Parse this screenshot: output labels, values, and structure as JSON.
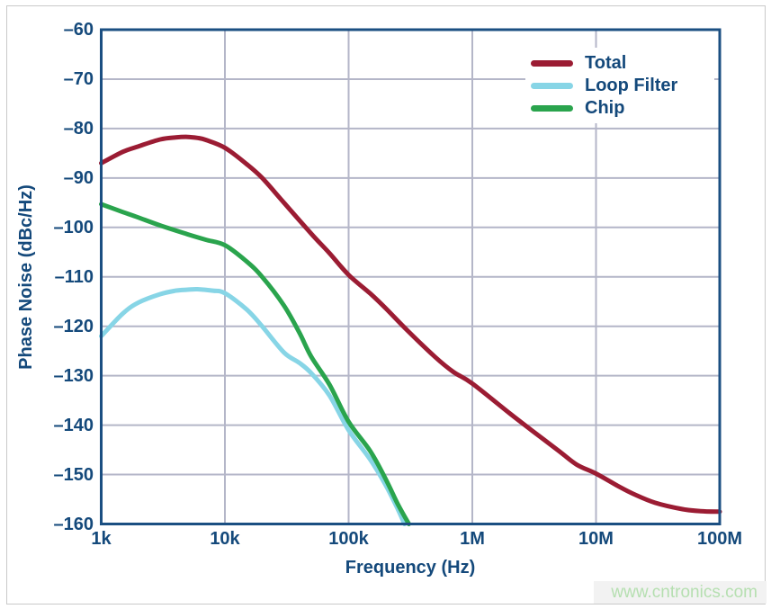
{
  "watermark": "www.cntronics.com",
  "colors": {
    "axis_text": "#14497b",
    "plot_border": "#1b4f82",
    "grid": "#b4b6c8",
    "frame_border": "#c9c9c9",
    "watermark_text": "#b5dfb0",
    "watermark_bg": "#f2f2f2",
    "background": "#ffffff"
  },
  "chart_data": {
    "type": "line",
    "title": "",
    "xlabel": "Frequency (Hz)",
    "ylabel": "Phase Noise (dBc/Hz)",
    "x_scale": "log",
    "xlim_hz": [
      1000,
      100000000
    ],
    "ylim_dbc_hz": [
      -160,
      -60
    ],
    "grid": true,
    "legend_position": "top-right-inside",
    "x_ticks": [
      {
        "hz": 1000,
        "label": "1k"
      },
      {
        "hz": 10000,
        "label": "10k"
      },
      {
        "hz": 100000,
        "label": "100k"
      },
      {
        "hz": 1000000,
        "label": "1M"
      },
      {
        "hz": 10000000,
        "label": "10M"
      },
      {
        "hz": 100000000,
        "label": "100M"
      }
    ],
    "y_ticks": [
      {
        "db": -60,
        "label": "–60"
      },
      {
        "db": -70,
        "label": "–70"
      },
      {
        "db": -80,
        "label": "–80"
      },
      {
        "db": -90,
        "label": "–90"
      },
      {
        "db": -100,
        "label": "–100"
      },
      {
        "db": -110,
        "label": "–110"
      },
      {
        "db": -120,
        "label": "–120"
      },
      {
        "db": -130,
        "label": "–130"
      },
      {
        "db": -140,
        "label": "–140"
      },
      {
        "db": -150,
        "label": "–150"
      },
      {
        "db": -160,
        "label": "–160"
      }
    ],
    "series": [
      {
        "name": "Total",
        "color": "#9b1c33",
        "points": [
          [
            1000,
            -87
          ],
          [
            1500,
            -84.7
          ],
          [
            2000,
            -83.6
          ],
          [
            3000,
            -82.2
          ],
          [
            4000,
            -81.8
          ],
          [
            5000,
            -81.7
          ],
          [
            6000,
            -81.9
          ],
          [
            7000,
            -82.3
          ],
          [
            10000,
            -83.9
          ],
          [
            15000,
            -87.2
          ],
          [
            20000,
            -90
          ],
          [
            30000,
            -95
          ],
          [
            50000,
            -101.3
          ],
          [
            70000,
            -105.2
          ],
          [
            100000,
            -109.6
          ],
          [
            150000,
            -113.4
          ],
          [
            200000,
            -116.4
          ],
          [
            300000,
            -120.9
          ],
          [
            500000,
            -126.2
          ],
          [
            700000,
            -129.2
          ],
          [
            1000000,
            -131.6
          ],
          [
            2000000,
            -137.6
          ],
          [
            3000000,
            -141
          ],
          [
            5000000,
            -145.2
          ],
          [
            7000000,
            -148
          ],
          [
            10000000,
            -149.8
          ],
          [
            15000000,
            -152.3
          ],
          [
            20000000,
            -153.9
          ],
          [
            30000000,
            -155.7
          ],
          [
            50000000,
            -157
          ],
          [
            70000000,
            -157.4
          ],
          [
            100000000,
            -157.5
          ]
        ]
      },
      {
        "name": "Loop Filter",
        "color": "#87d5e6",
        "points": [
          [
            1000,
            -122
          ],
          [
            1500,
            -117.4
          ],
          [
            2000,
            -115.2
          ],
          [
            3000,
            -113.5
          ],
          [
            4000,
            -112.8
          ],
          [
            5000,
            -112.6
          ],
          [
            6000,
            -112.5
          ],
          [
            8000,
            -112.8
          ],
          [
            10000,
            -113.3
          ],
          [
            15000,
            -116.6
          ],
          [
            20000,
            -120
          ],
          [
            30000,
            -125.3
          ],
          [
            40000,
            -127.4
          ],
          [
            50000,
            -129.5
          ],
          [
            70000,
            -134
          ],
          [
            100000,
            -141
          ],
          [
            150000,
            -147
          ],
          [
            200000,
            -152.2
          ],
          [
            250000,
            -157
          ],
          [
            283000,
            -160
          ]
        ]
      },
      {
        "name": "Chip",
        "color": "#2aa44d",
        "points": [
          [
            1000,
            -95.3
          ],
          [
            1500,
            -96.9
          ],
          [
            2000,
            -98
          ],
          [
            3000,
            -99.6
          ],
          [
            5000,
            -101.4
          ],
          [
            7000,
            -102.5
          ],
          [
            10000,
            -103.6
          ],
          [
            15000,
            -106.9
          ],
          [
            20000,
            -110
          ],
          [
            30000,
            -115.8
          ],
          [
            40000,
            -121.3
          ],
          [
            50000,
            -126.2
          ],
          [
            70000,
            -131.8
          ],
          [
            100000,
            -139.3
          ],
          [
            150000,
            -145.3
          ],
          [
            200000,
            -151
          ],
          [
            250000,
            -156
          ],
          [
            307000,
            -160
          ]
        ]
      }
    ]
  }
}
